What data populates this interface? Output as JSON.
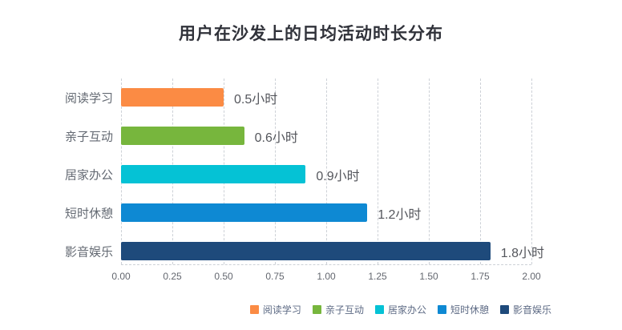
{
  "chart_data": {
    "type": "bar",
    "orientation": "horizontal",
    "title": "用户在沙发上的日均活动时长分布",
    "categories": [
      "阅读学习",
      "亲子互动",
      "居家办公",
      "短时休憩",
      "影音娱乐"
    ],
    "values": [
      0.5,
      0.6,
      0.9,
      1.2,
      1.8
    ],
    "value_labels": [
      "0.5小时",
      "0.6小时",
      "0.9小时",
      "1.2小时",
      "1.8小时"
    ],
    "bar_colors": [
      "#FB8B44",
      "#77B63D",
      "#05C2D5",
      "#0E89D3",
      "#1E4A7B"
    ],
    "xlabel": "",
    "ylabel": "",
    "xlim": [
      0,
      2
    ],
    "x_ticks": [
      {
        "value": 0.0,
        "label": "0.00"
      },
      {
        "value": 0.25,
        "label": "0.25"
      },
      {
        "value": 0.5,
        "label": "0.50"
      },
      {
        "value": 0.75,
        "label": "0.75"
      },
      {
        "value": 1.0,
        "label": "1.00"
      },
      {
        "value": 1.25,
        "label": "1.25"
      },
      {
        "value": 1.5,
        "label": "1.50"
      },
      {
        "value": 1.75,
        "label": "1.75"
      },
      {
        "value": 2.0,
        "label": "2.00"
      }
    ],
    "grid": "vertical-dashed",
    "legend": {
      "position": "bottom-right",
      "items": [
        "阅读学习",
        "亲子互动",
        "居家办公",
        "短时休憩",
        "影音娱乐"
      ]
    }
  },
  "colors": {
    "title_text": "#30323A",
    "category_label": "#646A73",
    "value_label": "#54565C",
    "tick_label": "#63676F",
    "legend_label": "#5E6B85",
    "gridline": "#CDD1D7",
    "background": "#FFFFFF"
  }
}
